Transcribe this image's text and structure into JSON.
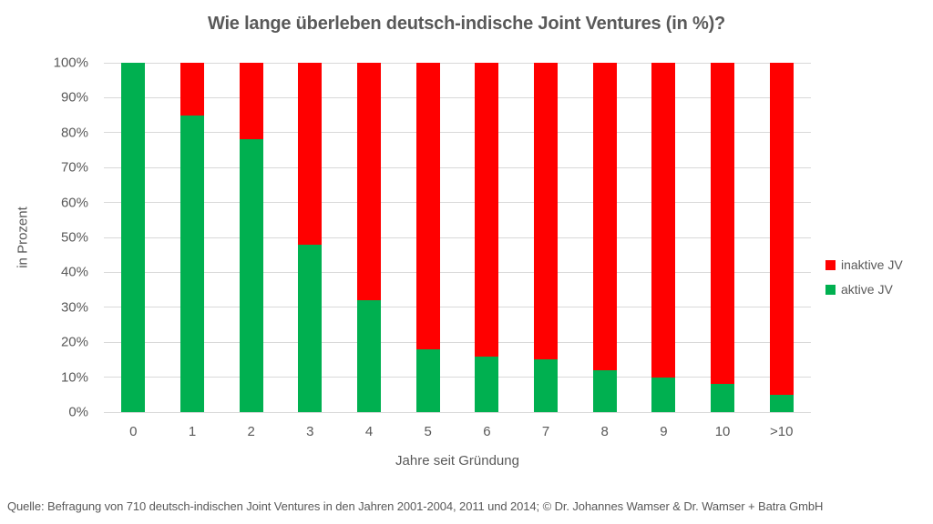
{
  "source": "Quelle: Befragung von 710 deutsch-indischen Joint Ventures in den Jahren 2001-2004, 2011 und 2014; © Dr. Johannes Wamser & Dr. Wamser + Batra GmbH",
  "chart_data": {
    "type": "bar",
    "stacked": true,
    "title": "Wie lange überleben deutsch-indische Joint Ventures (in %)?",
    "xlabel": "Jahre seit Gründung",
    "ylabel": "in Prozent",
    "categories": [
      "0",
      "1",
      "2",
      "3",
      "4",
      "5",
      "6",
      "7",
      "8",
      "9",
      "10",
      ">10"
    ],
    "series": [
      {
        "name": "aktive JV",
        "color": "#00B050",
        "values": [
          100,
          85,
          78,
          48,
          32,
          18,
          16,
          15,
          12,
          10,
          8,
          5
        ]
      },
      {
        "name": "inaktive JV",
        "color": "#FF0000",
        "values": [
          0,
          15,
          22,
          52,
          68,
          82,
          84,
          85,
          88,
          90,
          92,
          95
        ]
      }
    ],
    "ylim": [
      0,
      100
    ],
    "yticks": [
      "0%",
      "10%",
      "20%",
      "30%",
      "40%",
      "50%",
      "60%",
      "70%",
      "80%",
      "90%",
      "100%"
    ],
    "grid": true,
    "legend_position": "right",
    "legend": [
      {
        "label": "inaktive JV",
        "color": "#FF0000"
      },
      {
        "label": "aktive JV",
        "color": "#00B050"
      }
    ],
    "colors": {
      "text": "#595959",
      "gridline": "#D9D9D9",
      "background": "#FFFFFF"
    }
  }
}
